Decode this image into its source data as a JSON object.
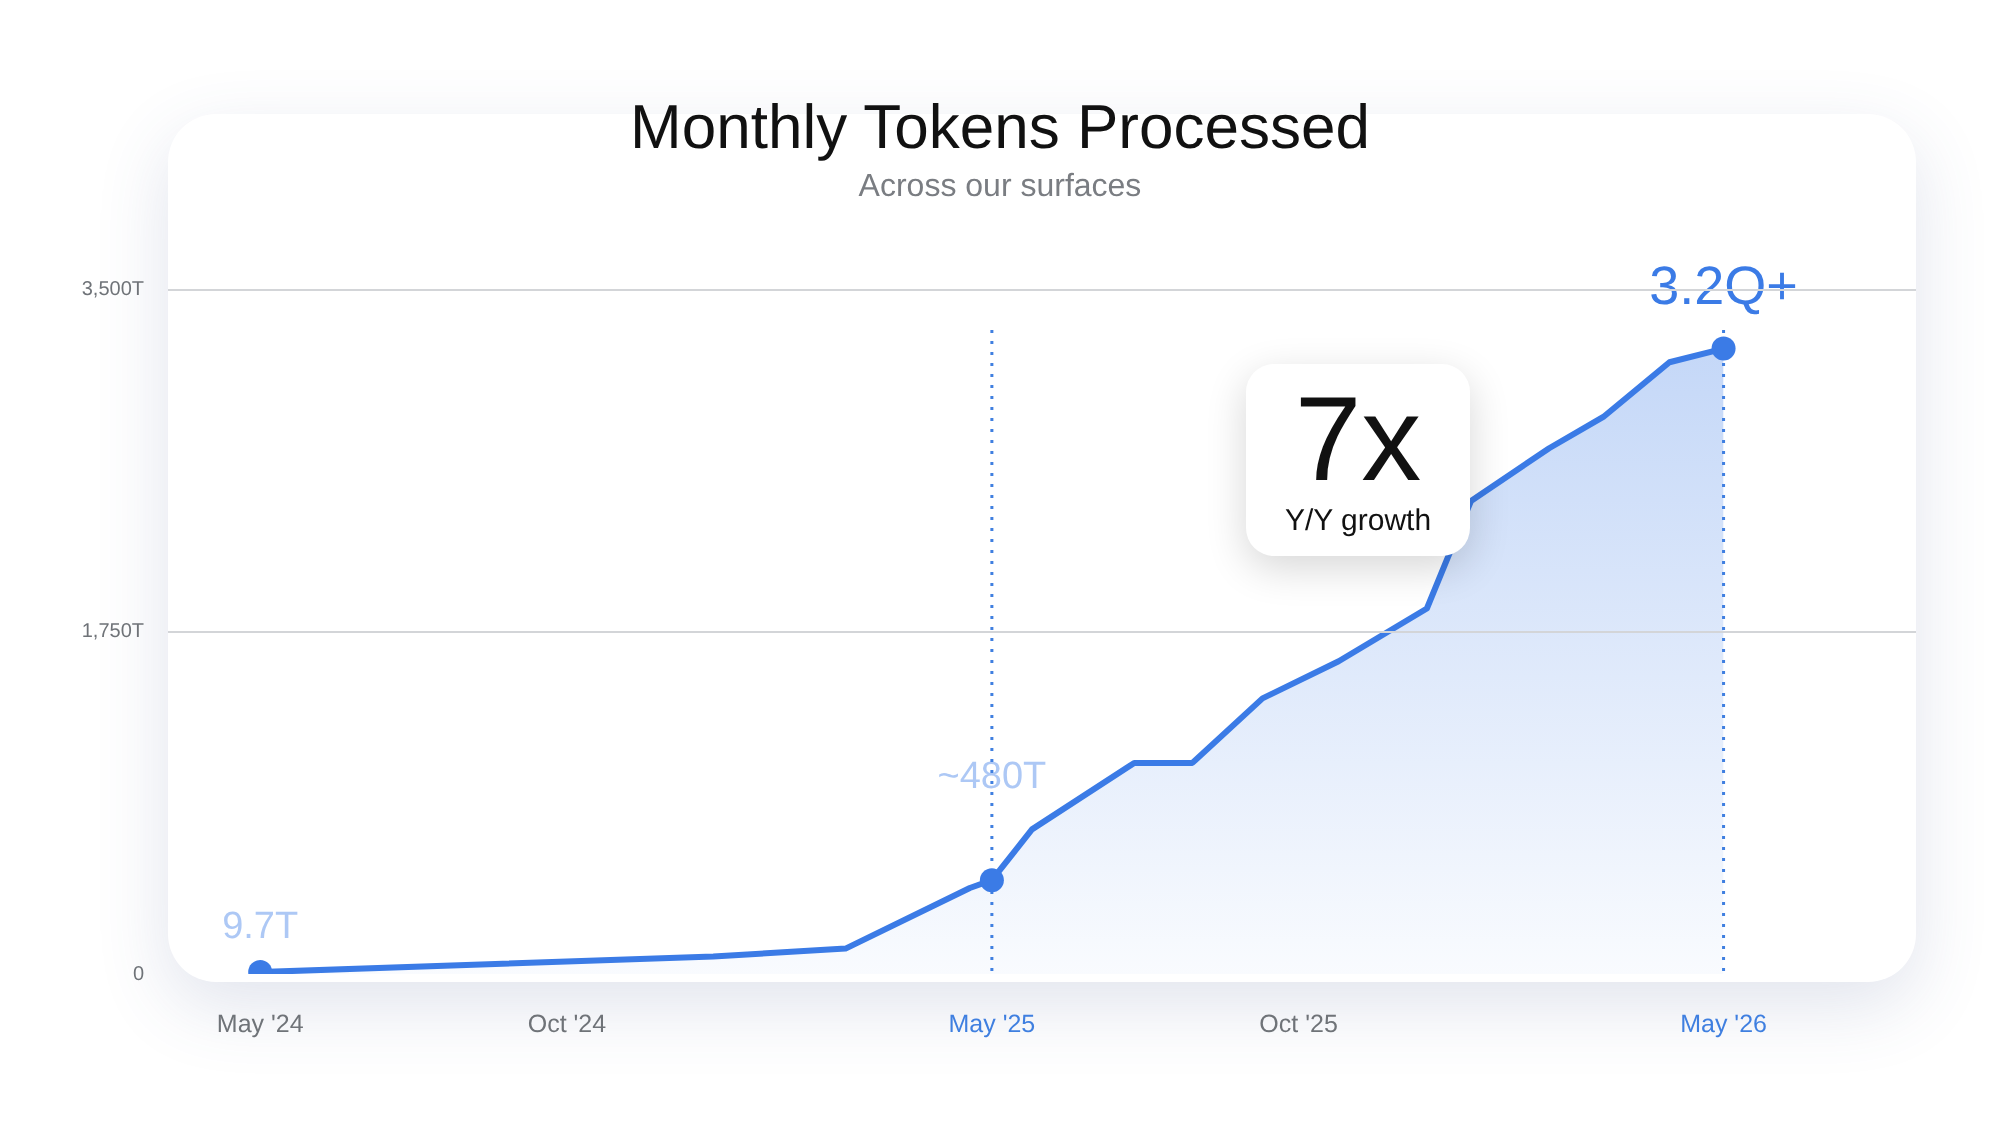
{
  "chart_data": {
    "type": "area",
    "title": "Monthly Tokens Processed",
    "subtitle": "Across our surfaces",
    "series": [
      {
        "color": "#3b7be6",
        "marker": "none",
        "x": [
          "2024-05",
          "2024-12-13",
          "2025-02-17",
          "2025-04-20",
          "2025-05",
          "2025-05-21",
          "2025-07-11",
          "2025-08-09",
          "2025-09-13",
          "2025-10-21",
          "2025-12-04",
          "2025-12-26",
          "2026-02-03",
          "2026-03-02",
          "2026-04-04",
          "2026-05"
        ],
        "values": [
          9.7,
          90,
          130,
          440,
          480,
          740,
          1080,
          1080,
          1410,
          1600,
          1870,
          2420,
          2690,
          2850,
          3130,
          3200
        ]
      },
      {
        "type": "scatter",
        "color": "#3b7be6",
        "marker": "circle",
        "x": [
          "2024-05",
          "2025-05",
          "2026-05"
        ],
        "values": [
          9.7,
          480,
          3200
        ]
      }
    ],
    "xlim": [
      "2024-03-16",
      "2026-08-05"
    ],
    "xticks": [
      {
        "value": "2024-05",
        "label": "May '24"
      },
      {
        "value": "2024-10",
        "label": "Oct '24"
      },
      {
        "value": "2025-05",
        "label": "May '25"
      },
      {
        "value": "2025-10",
        "label": "Oct '25"
      },
      {
        "value": "2026-05",
        "label": "May '26"
      }
    ],
    "ylim": [
      0,
      4400
    ],
    "yticks": [
      0,
      {
        "value": 1750,
        "label": "1,750T"
      },
      {
        "value": 3500,
        "label": "3,500T"
      }
    ],
    "grid": "y",
    "ref_lines": [
      {
        "axis": "x",
        "value": "2025-05",
        "color": "#3f7fe0",
        "line_style": "dotted"
      },
      {
        "axis": "x",
        "value": "2026-05",
        "color": "#3f7fe0",
        "line_style": "dotted"
      }
    ],
    "annotations": [
      {
        "text": "9.7T",
        "x": "2024-05",
        "y": 9.7
      },
      {
        "text": "~480T",
        "x": "2025-05",
        "y": 480
      },
      {
        "text": "3.2Q+",
        "x": "2026-05",
        "y": 3200
      },
      "7x",
      "Y/Y growth"
    ]
  }
}
